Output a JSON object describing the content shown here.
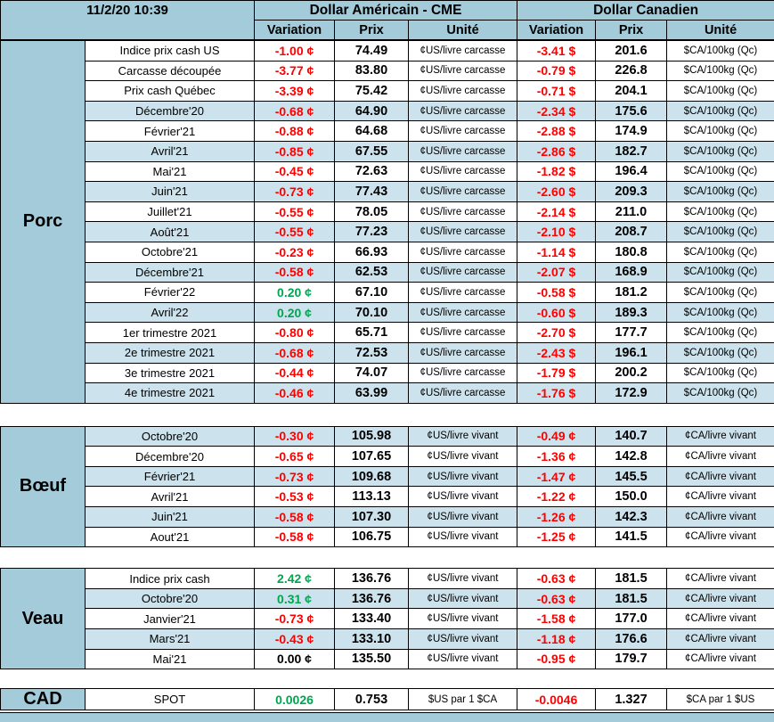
{
  "header": {
    "timestamp": "11/2/20 10:39",
    "us_title": "Dollar Américain - CME",
    "ca_title": "Dollar Canadien",
    "columns": {
      "variation": "Variation",
      "prix": "Prix",
      "unite": "Unité"
    }
  },
  "colors": {
    "header_blue": "#a3cbda",
    "band_blue": "#cce2ec",
    "negative": "#ff0000",
    "positive": "#00a550",
    "neutral": "#000000"
  },
  "sections": [
    {
      "id": "porc",
      "label": "Porc",
      "rows": [
        {
          "label": "Indice prix cash US",
          "us_var": "-1.00 ¢",
          "us_prix": "74.49",
          "us_unit": "¢US/livre carcasse",
          "ca_var": "-3.41 $",
          "ca_prix": "201.6",
          "ca_unit": "$CA/100kg (Qc)",
          "shaded": false
        },
        {
          "label": "Carcasse découpée",
          "us_var": "-3.77 ¢",
          "us_prix": "83.80",
          "us_unit": "¢US/livre carcasse",
          "ca_var": "-0.79 $",
          "ca_prix": "226.8",
          "ca_unit": "$CA/100kg (Qc)",
          "shaded": false
        },
        {
          "label": "Prix cash Québec",
          "us_var": "-3.39 ¢",
          "us_prix": "75.42",
          "us_unit": "¢US/livre carcasse",
          "ca_var": "-0.71 $",
          "ca_prix": "204.1",
          "ca_unit": "$CA/100kg (Qc)",
          "shaded": false
        },
        {
          "label": "Décembre'20",
          "us_var": "-0.68 ¢",
          "us_prix": "64.90",
          "us_unit": "¢US/livre carcasse",
          "ca_var": "-2.34 $",
          "ca_prix": "175.6",
          "ca_unit": "$CA/100kg (Qc)",
          "shaded": true
        },
        {
          "label": "Février'21",
          "us_var": "-0.88 ¢",
          "us_prix": "64.68",
          "us_unit": "¢US/livre carcasse",
          "ca_var": "-2.88 $",
          "ca_prix": "174.9",
          "ca_unit": "$CA/100kg (Qc)",
          "shaded": false
        },
        {
          "label": "Avril'21",
          "us_var": "-0.85 ¢",
          "us_prix": "67.55",
          "us_unit": "¢US/livre carcasse",
          "ca_var": "-2.86 $",
          "ca_prix": "182.7",
          "ca_unit": "$CA/100kg (Qc)",
          "shaded": true
        },
        {
          "label": "Mai'21",
          "us_var": "-0.45 ¢",
          "us_prix": "72.63",
          "us_unit": "¢US/livre carcasse",
          "ca_var": "-1.82 $",
          "ca_prix": "196.4",
          "ca_unit": "$CA/100kg (Qc)",
          "shaded": false
        },
        {
          "label": "Juin'21",
          "us_var": "-0.73 ¢",
          "us_prix": "77.43",
          "us_unit": "¢US/livre carcasse",
          "ca_var": "-2.60 $",
          "ca_prix": "209.3",
          "ca_unit": "$CA/100kg (Qc)",
          "shaded": true
        },
        {
          "label": "Juillet'21",
          "us_var": "-0.55 ¢",
          "us_prix": "78.05",
          "us_unit": "¢US/livre carcasse",
          "ca_var": "-2.14 $",
          "ca_prix": "211.0",
          "ca_unit": "$CA/100kg (Qc)",
          "shaded": false
        },
        {
          "label": "Août'21",
          "us_var": "-0.55 ¢",
          "us_prix": "77.23",
          "us_unit": "¢US/livre carcasse",
          "ca_var": "-2.10 $",
          "ca_prix": "208.7",
          "ca_unit": "$CA/100kg (Qc)",
          "shaded": true
        },
        {
          "label": "Octobre'21",
          "us_var": "-0.23 ¢",
          "us_prix": "66.93",
          "us_unit": "¢US/livre carcasse",
          "ca_var": "-1.14 $",
          "ca_prix": "180.8",
          "ca_unit": "$CA/100kg (Qc)",
          "shaded": false
        },
        {
          "label": "Décembre'21",
          "us_var": "-0.58 ¢",
          "us_prix": "62.53",
          "us_unit": "¢US/livre carcasse",
          "ca_var": "-2.07 $",
          "ca_prix": "168.9",
          "ca_unit": "$CA/100kg (Qc)",
          "shaded": true
        },
        {
          "label": "Février'22",
          "us_var": "0.20 ¢",
          "us_prix": "67.10",
          "us_unit": "¢US/livre carcasse",
          "ca_var": "-0.58 $",
          "ca_prix": "181.2",
          "ca_unit": "$CA/100kg (Qc)",
          "shaded": false
        },
        {
          "label": "Avril'22",
          "us_var": "0.20 ¢",
          "us_prix": "70.10",
          "us_unit": "¢US/livre carcasse",
          "ca_var": "-0.60 $",
          "ca_prix": "189.3",
          "ca_unit": "$CA/100kg (Qc)",
          "shaded": true
        },
        {
          "label": "1er trimestre 2021",
          "us_var": "-0.80 ¢",
          "us_prix": "65.71",
          "us_unit": "¢US/livre carcasse",
          "ca_var": "-2.70 $",
          "ca_prix": "177.7",
          "ca_unit": "$CA/100kg (Qc)",
          "shaded": false
        },
        {
          "label": "2e trimestre 2021",
          "us_var": "-0.68 ¢",
          "us_prix": "72.53",
          "us_unit": "¢US/livre carcasse",
          "ca_var": "-2.43 $",
          "ca_prix": "196.1",
          "ca_unit": "$CA/100kg (Qc)",
          "shaded": true
        },
        {
          "label": "3e trimestre 2021",
          "us_var": "-0.44 ¢",
          "us_prix": "74.07",
          "us_unit": "¢US/livre carcasse",
          "ca_var": "-1.79 $",
          "ca_prix": "200.2",
          "ca_unit": "$CA/100kg (Qc)",
          "shaded": false
        },
        {
          "label": "4e trimestre 2021",
          "us_var": "-0.46 ¢",
          "us_prix": "63.99",
          "us_unit": "¢US/livre carcasse",
          "ca_var": "-1.76 $",
          "ca_prix": "172.9",
          "ca_unit": "$CA/100kg (Qc)",
          "shaded": true
        }
      ]
    },
    {
      "id": "boeuf",
      "label": "Bœuf",
      "rows": [
        {
          "label": "Octobre'20",
          "us_var": "-0.30 ¢",
          "us_prix": "105.98",
          "us_unit": "¢US/livre vivant",
          "ca_var": "-0.49 ¢",
          "ca_prix": "140.7",
          "ca_unit": "¢CA/livre vivant",
          "shaded": true
        },
        {
          "label": "Décembre'20",
          "us_var": "-0.65 ¢",
          "us_prix": "107.65",
          "us_unit": "¢US/livre vivant",
          "ca_var": "-1.36 ¢",
          "ca_prix": "142.8",
          "ca_unit": "¢CA/livre vivant",
          "shaded": false
        },
        {
          "label": "Février'21",
          "us_var": "-0.73 ¢",
          "us_prix": "109.68",
          "us_unit": "¢US/livre vivant",
          "ca_var": "-1.47 ¢",
          "ca_prix": "145.5",
          "ca_unit": "¢CA/livre vivant",
          "shaded": true
        },
        {
          "label": "Avril'21",
          "us_var": "-0.53 ¢",
          "us_prix": "113.13",
          "us_unit": "¢US/livre vivant",
          "ca_var": "-1.22 ¢",
          "ca_prix": "150.0",
          "ca_unit": "¢CA/livre vivant",
          "shaded": false
        },
        {
          "label": "Juin'21",
          "us_var": "-0.58 ¢",
          "us_prix": "107.30",
          "us_unit": "¢US/livre vivant",
          "ca_var": "-1.26 ¢",
          "ca_prix": "142.3",
          "ca_unit": "¢CA/livre vivant",
          "shaded": true
        },
        {
          "label": "Aout'21",
          "us_var": "-0.58 ¢",
          "us_prix": "106.75",
          "us_unit": "¢US/livre vivant",
          "ca_var": "-1.25 ¢",
          "ca_prix": "141.5",
          "ca_unit": "¢CA/livre vivant",
          "shaded": false
        }
      ]
    },
    {
      "id": "veau",
      "label": "Veau",
      "rows": [
        {
          "label": "Indice prix cash",
          "us_var": "2.42 ¢",
          "us_prix": "136.76",
          "us_unit": "¢US/livre vivant",
          "ca_var": "-0.63 ¢",
          "ca_prix": "181.5",
          "ca_unit": "¢CA/livre vivant",
          "shaded": false
        },
        {
          "label": "Octobre'20",
          "us_var": "0.31 ¢",
          "us_prix": "136.76",
          "us_unit": "¢US/livre vivant",
          "ca_var": "-0.63 ¢",
          "ca_prix": "181.5",
          "ca_unit": "¢CA/livre vivant",
          "shaded": true
        },
        {
          "label": "Janvier'21",
          "us_var": "-0.73 ¢",
          "us_prix": "133.40",
          "us_unit": "¢US/livre vivant",
          "ca_var": "-1.58 ¢",
          "ca_prix": "177.0",
          "ca_unit": "¢CA/livre vivant",
          "shaded": false
        },
        {
          "label": "Mars'21",
          "us_var": "-0.43 ¢",
          "us_prix": "133.10",
          "us_unit": "¢US/livre vivant",
          "ca_var": "-1.18 ¢",
          "ca_prix": "176.6",
          "ca_unit": "¢CA/livre vivant",
          "shaded": true
        },
        {
          "label": "Mai'21",
          "us_var": "0.00 ¢",
          "us_prix": "135.50",
          "us_unit": "¢US/livre vivant",
          "ca_var": "-0.95 ¢",
          "ca_prix": "179.7",
          "ca_unit": "¢CA/livre vivant",
          "shaded": false
        }
      ]
    },
    {
      "id": "cad",
      "label": "CAD",
      "rows": [
        {
          "label": "SPOT",
          "us_var": "0.0026",
          "us_prix": "0.753",
          "us_unit": "$US par 1 $CA",
          "ca_var": "-0.0046",
          "ca_prix": "1.327",
          "ca_unit": "$CA par 1 $US",
          "shaded": false
        }
      ]
    }
  ]
}
